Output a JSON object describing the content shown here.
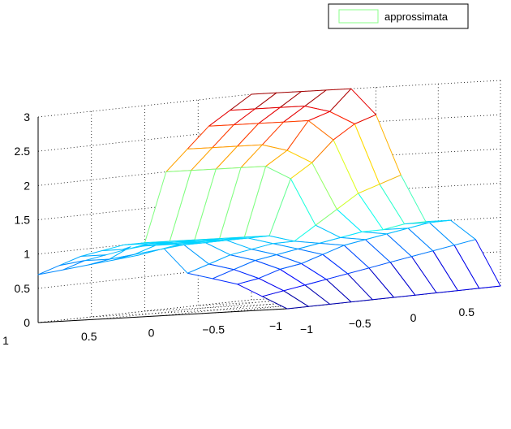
{
  "chart_data": {
    "type": "surface",
    "title": "",
    "xlabel": "",
    "ylabel": "",
    "zlabel": "",
    "legend": {
      "placement": "top-right",
      "entries": [
        "approssimata"
      ],
      "swatch_color": "#88ff88"
    },
    "x": [
      -1,
      -0.8,
      -0.6,
      -0.4,
      -0.2,
      0,
      0.2,
      0.4,
      0.6,
      0.8,
      1
    ],
    "y": [
      -1,
      -0.8,
      -0.6,
      -0.4,
      -0.2,
      0,
      0.2,
      0.4,
      0.6,
      0.8,
      1
    ],
    "z": [
      [
        0.0,
        0.0,
        0.0,
        0.0,
        0.0,
        0.0,
        0.0,
        0.0,
        0.0,
        0.0,
        0.0
      ],
      [
        0.2,
        0.25,
        0.3,
        0.35,
        0.4,
        0.45,
        0.5,
        0.55,
        0.6,
        0.65,
        0.7
      ],
      [
        0.4,
        0.45,
        0.55,
        0.6,
        0.7,
        0.8,
        0.85,
        0.9,
        0.95,
        1.0,
        1.0
      ],
      [
        0.5,
        0.6,
        0.7,
        0.75,
        0.8,
        0.85,
        0.9,
        0.95,
        0.95,
        1.0,
        1.0
      ],
      [
        0.6,
        0.7,
        0.8,
        0.85,
        0.9,
        0.9,
        1.1,
        1.3,
        1.5,
        1.6,
        1.7
      ],
      [
        1.0,
        1.0,
        1.0,
        1.0,
        1.0,
        1.0,
        1.8,
        2.0,
        2.3,
        2.5,
        2.6
      ],
      [
        0.9,
        0.95,
        1.0,
        1.0,
        1.0,
        1.0,
        2.0,
        2.2,
        2.6,
        2.7,
        3.0
      ],
      [
        0.85,
        0.9,
        1.0,
        1.0,
        1.0,
        1.0,
        2.0,
        2.3,
        2.6,
        2.8,
        3.0
      ],
      [
        0.8,
        0.85,
        1.0,
        1.0,
        1.0,
        1.0,
        2.0,
        2.3,
        2.6,
        2.8,
        3.0
      ],
      [
        0.75,
        0.85,
        0.9,
        0.95,
        1.0,
        1.0,
        2.0,
        2.3,
        2.6,
        2.8,
        3.0
      ],
      [
        0.7,
        0.8,
        0.9,
        0.95,
        1.0,
        1.0,
        2.0,
        2.3,
        2.6,
        2.8,
        3.0
      ]
    ],
    "xticks": [
      "1",
      "0.5",
      "0",
      "−0.5",
      "−1"
    ],
    "yticks": [
      "−1",
      "−0.5",
      "0",
      "0.5"
    ],
    "zticks": [
      "0",
      "0.5",
      "1",
      "1.5",
      "2",
      "2.5",
      "3"
    ],
    "xlim": [
      -1,
      1
    ],
    "ylim": [
      -1,
      1
    ],
    "zlim": [
      0,
      3
    ],
    "grid": true,
    "colormap": "jet"
  }
}
